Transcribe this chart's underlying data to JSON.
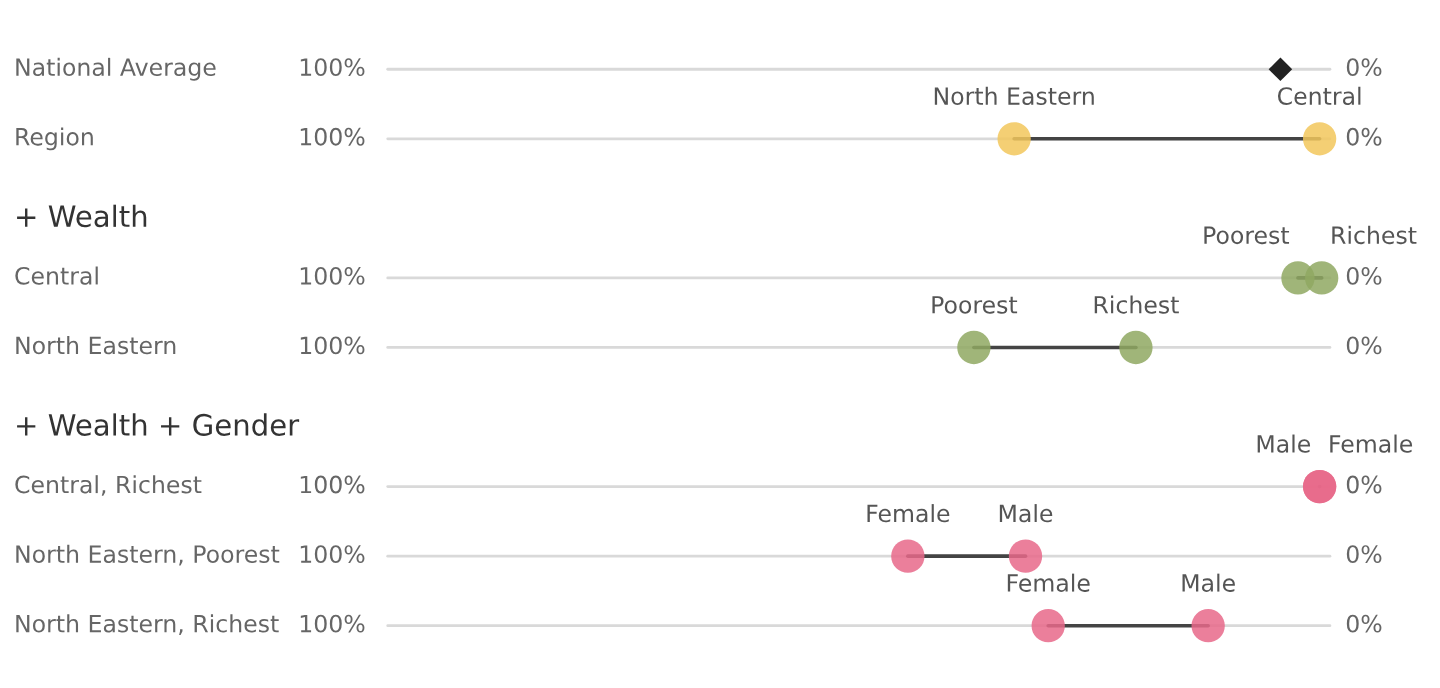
{
  "chart_data": {
    "type": "scatter",
    "orientation": "horizontal",
    "categories": [
      "National Average",
      "Region",
      "+ Wealth",
      "Central",
      "North Eastern",
      "+ Wealth + Gender",
      "Central, Richest",
      "North Eastern, Poorest",
      "North Eastern, Richest"
    ],
    "xlim": [
      100,
      0
    ],
    "xticks": [
      {
        "value": 100,
        "label": "100%"
      },
      {
        "value": 0,
        "label": "0%"
      }
    ],
    "grid": "y",
    "series": [
      {
        "color": "#222222",
        "marker": "diamond",
        "values": [
          8.1,
          null,
          null,
          null,
          null,
          null,
          null,
          null,
          null
        ],
        "value_labels": [
          null,
          null,
          null,
          null,
          null,
          null,
          null,
          null,
          null
        ]
      },
      {
        "color": "#f2c75c",
        "marker": "circle",
        "values": [
          null,
          33.9,
          null,
          null,
          null,
          null,
          null,
          null,
          null
        ],
        "value_labels": [
          null,
          "North Eastern",
          null,
          null,
          null,
          null,
          null,
          null,
          null
        ]
      },
      {
        "color": "#f2c75c",
        "marker": "circle",
        "values": [
          null,
          4.3,
          null,
          null,
          null,
          null,
          null,
          null,
          null
        ],
        "value_labels": [
          null,
          "Central",
          null,
          null,
          null,
          null,
          null,
          null,
          null
        ]
      },
      {
        "color": "#8fa862",
        "marker": "circle",
        "values": [
          null,
          null,
          null,
          6.4,
          37.8,
          null,
          null,
          null,
          null
        ],
        "value_labels": [
          null,
          null,
          null,
          "Poorest",
          "Poorest",
          null,
          null,
          null,
          null
        ]
      },
      {
        "color": "#8fa862",
        "marker": "circle",
        "values": [
          null,
          null,
          null,
          4.1,
          22.1,
          null,
          null,
          null,
          null
        ],
        "value_labels": [
          null,
          null,
          null,
          "Richest",
          "Richest",
          null,
          null,
          null,
          null
        ]
      },
      {
        "color": "#e8698a",
        "marker": "circle",
        "values": [
          null,
          null,
          null,
          null,
          null,
          null,
          4.3,
          44.2,
          30.6
        ],
        "value_labels": [
          null,
          null,
          null,
          null,
          null,
          null,
          "Male",
          "Female",
          "Female"
        ]
      },
      {
        "color": "#e8698a",
        "marker": "circle",
        "values": [
          null,
          null,
          null,
          null,
          null,
          null,
          4.3,
          32.8,
          15.1
        ],
        "value_labels": [
          null,
          null,
          null,
          null,
          null,
          null,
          "Female",
          "Male",
          "Male"
        ]
      }
    ]
  }
}
